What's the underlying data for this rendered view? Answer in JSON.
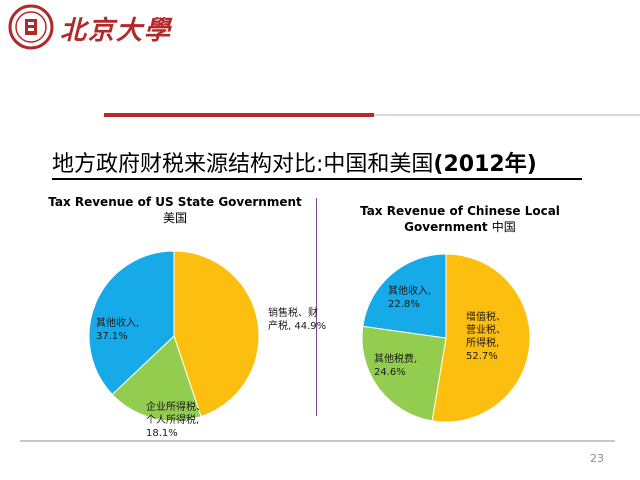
{
  "header": {
    "logo_text": "北京大學"
  },
  "slide": {
    "title_main": "地方政府财税来源结构对比:中国和美国",
    "title_year": "(2012年)",
    "page_number": "23"
  },
  "colors": {
    "blue": "#16aae8",
    "green": "#93cd4f",
    "orange": "#fdbf0f",
    "brand_red": "#b02a2a"
  },
  "chart_data": [
    {
      "type": "pie",
      "title": "Tax Revenue of US State Government",
      "subtitle": "美国",
      "slices": [
        {
          "label_lines": [
            "销售税、财",
            "产税, 44.9%"
          ],
          "value": 44.9,
          "color": "#fdbf0f"
        },
        {
          "label_lines": [
            "企业所得税、",
            "个人所得税,",
            "18.1%"
          ],
          "value": 18.1,
          "color": "#93cd4f"
        },
        {
          "label_lines": [
            "其他收入,",
            "37.1%"
          ],
          "value": 37.1,
          "color": "#16aae8"
        }
      ]
    },
    {
      "type": "pie",
      "title": "Tax Revenue of Chinese Local",
      "subtitle_prefix": "Government",
      "subtitle": "中国",
      "slices": [
        {
          "label_lines": [
            "增值税、",
            "营业税、",
            "所得税,",
            "52.7%"
          ],
          "value": 52.7,
          "color": "#fdbf0f"
        },
        {
          "label_lines": [
            "其他税费,",
            "24.6%"
          ],
          "value": 24.6,
          "color": "#93cd4f"
        },
        {
          "label_lines": [
            "其他收入,",
            "22.8%"
          ],
          "value": 22.8,
          "color": "#16aae8"
        }
      ]
    }
  ]
}
